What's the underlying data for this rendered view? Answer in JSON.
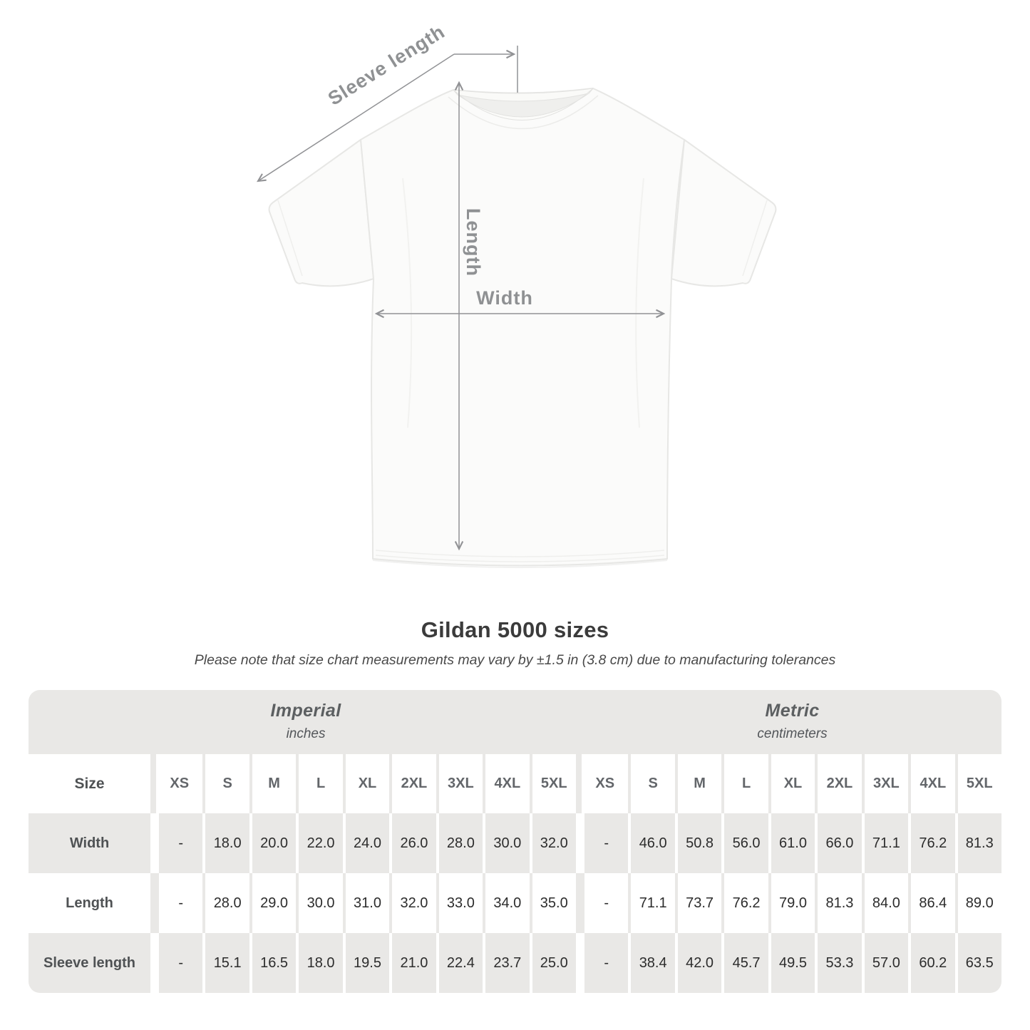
{
  "title": "Gildan 5000 sizes",
  "subtitle": "Please note that size chart measurements may vary by ±1.5 in (3.8 cm) due to manufacturing tolerances",
  "diagram": {
    "sleeve_length_label": "Sleeve length",
    "length_label": "Length",
    "width_label": "Width"
  },
  "table": {
    "size_label": "Size",
    "groups": [
      {
        "label": "Imperial",
        "sublabel": "inches"
      },
      {
        "label": "Metric",
        "sublabel": "centimeters"
      }
    ]
  },
  "chart_data": {
    "type": "table",
    "title": "Gildan 5000 sizes",
    "unit_groups": [
      "Imperial (inches)",
      "Metric (centimeters)"
    ],
    "sizes": [
      "XS",
      "S",
      "M",
      "L",
      "XL",
      "2XL",
      "3XL",
      "4XL",
      "5XL"
    ],
    "rows": [
      {
        "label": "Width",
        "imperial": [
          "-",
          "18.0",
          "20.0",
          "22.0",
          "24.0",
          "26.0",
          "28.0",
          "30.0",
          "32.0"
        ],
        "metric": [
          "-",
          "46.0",
          "50.8",
          "56.0",
          "61.0",
          "66.0",
          "71.1",
          "76.2",
          "81.3"
        ]
      },
      {
        "label": "Length",
        "imperial": [
          "-",
          "28.0",
          "29.0",
          "30.0",
          "31.0",
          "32.0",
          "33.0",
          "34.0",
          "35.0"
        ],
        "metric": [
          "-",
          "71.1",
          "73.7",
          "76.2",
          "79.0",
          "81.3",
          "84.0",
          "86.4",
          "89.0"
        ]
      },
      {
        "label": "Sleeve length",
        "imperial": [
          "-",
          "15.1",
          "16.5",
          "18.0",
          "19.5",
          "21.0",
          "22.4",
          "23.7",
          "25.0"
        ],
        "metric": [
          "-",
          "38.4",
          "42.0",
          "45.7",
          "49.5",
          "53.3",
          "57.0",
          "60.2",
          "63.5"
        ]
      }
    ]
  },
  "colors": {
    "band_gray": "#e9e8e6",
    "value_text": "#2c2c2c",
    "heading_text": "#3b3b3b",
    "measure_label_gray": "#8f9193",
    "arrow_gray": "#919295",
    "shirt_outline": "#e7e7e5"
  }
}
